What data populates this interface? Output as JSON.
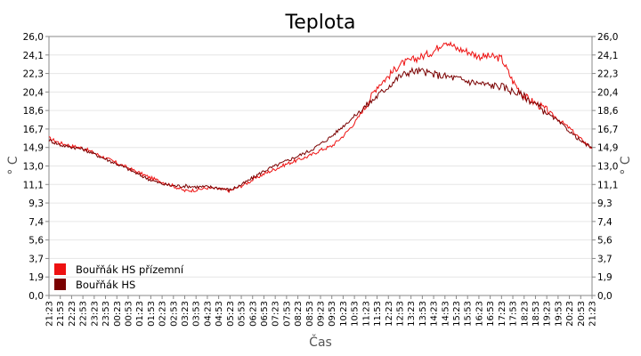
{
  "chart_data": {
    "type": "line",
    "title": "Teplota",
    "xlabel": "Čas",
    "ylabel": "° C",
    "ylim": [
      0,
      26
    ],
    "yticks": [
      "0,0",
      "1,9",
      "3,7",
      "5,6",
      "7,4",
      "9,3",
      "11,1",
      "13,0",
      "14,9",
      "16,7",
      "18,6",
      "20,4",
      "22,3",
      "24,1",
      "26,0"
    ],
    "x": [
      "21:23",
      "21:53",
      "22:23",
      "22:53",
      "23:23",
      "23:53",
      "00:23",
      "00:53",
      "01:23",
      "01:53",
      "02:23",
      "02:53",
      "03:23",
      "03:53",
      "04:23",
      "04:53",
      "05:23",
      "05:53",
      "06:23",
      "06:53",
      "07:23",
      "07:53",
      "08:23",
      "08:53",
      "09:23",
      "09:53",
      "10:23",
      "10:53",
      "11:23",
      "11:53",
      "12:23",
      "12:53",
      "13:23",
      "13:53",
      "14:23",
      "14:53",
      "15:23",
      "15:53",
      "16:23",
      "16:53",
      "17:23",
      "17:53",
      "18:23",
      "18:53",
      "19:23",
      "19:53",
      "20:23",
      "20:53",
      "21:23"
    ],
    "grid": true,
    "legend_position": "bottom-left",
    "series": [
      {
        "name": "Bouřňák HS přízemní",
        "color": "#ee1111",
        "values": [
          15.8,
          15.3,
          15.0,
          14.8,
          14.3,
          13.8,
          13.3,
          12.8,
          12.3,
          11.8,
          11.4,
          11.0,
          10.5,
          10.6,
          10.8,
          10.7,
          10.5,
          11.0,
          11.6,
          12.2,
          12.7,
          13.2,
          13.6,
          14.0,
          14.6,
          15.0,
          16.0,
          17.3,
          19.0,
          21.0,
          22.0,
          23.2,
          23.6,
          24.0,
          24.5,
          25.6,
          24.8,
          24.5,
          24.0,
          24.0,
          23.8,
          21.5,
          20.0,
          19.3,
          18.6,
          17.7,
          16.8,
          15.7,
          14.8
        ]
      },
      {
        "name": "Bouřňák HS",
        "color": "#7a0000",
        "values": [
          15.6,
          15.1,
          14.9,
          14.7,
          14.2,
          13.7,
          13.2,
          12.7,
          12.1,
          11.6,
          11.2,
          11.0,
          11.0,
          10.9,
          10.9,
          10.8,
          10.6,
          11.1,
          11.8,
          12.5,
          13.0,
          13.5,
          14.0,
          14.5,
          15.2,
          16.0,
          17.0,
          18.0,
          19.0,
          20.0,
          21.0,
          22.0,
          22.5,
          22.5,
          22.2,
          22.0,
          21.8,
          21.5,
          21.3,
          21.1,
          21.0,
          20.5,
          20.0,
          19.2,
          18.3,
          17.5,
          16.5,
          15.5,
          14.8
        ]
      }
    ]
  }
}
